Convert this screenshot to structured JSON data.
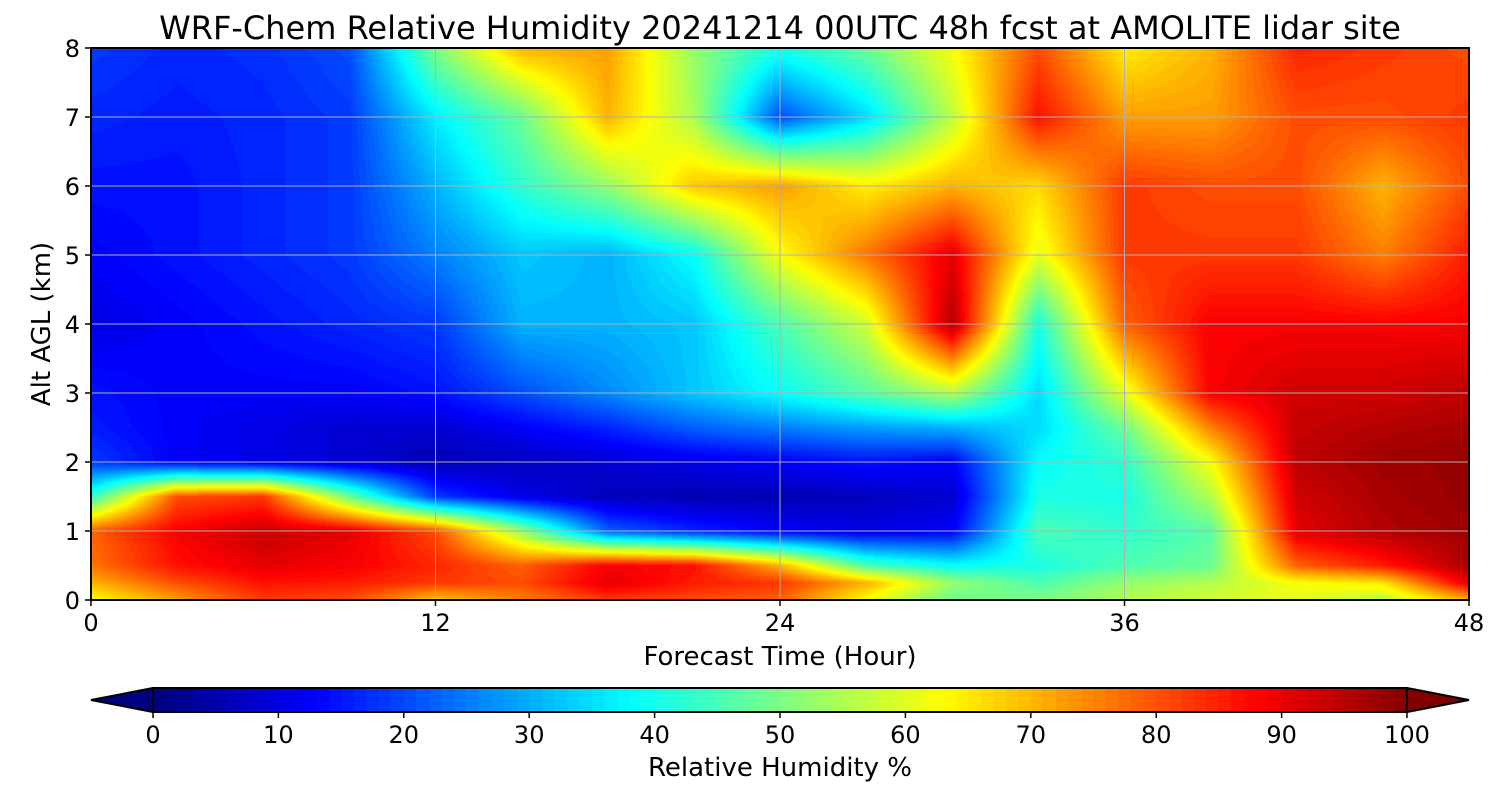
{
  "chart_data": {
    "type": "heatmap",
    "title": "WRF-Chem Relative Humidity 20241214 00UTC 48h fcst at AMOLITE lidar site",
    "xlabel": "Forecast Time (Hour)",
    "ylabel": "Alt AGL (km)",
    "xlim": [
      0,
      48
    ],
    "ylim": [
      0,
      8
    ],
    "xticks": [
      0,
      12,
      24,
      36,
      48
    ],
    "yticks": [
      0,
      1,
      2,
      3,
      4,
      5,
      6,
      7,
      8
    ],
    "grid": true,
    "colormap": "jet",
    "colorbar": {
      "label": "Relative Humidity %",
      "ticks": [
        0,
        10,
        20,
        30,
        40,
        50,
        60,
        70,
        80,
        90,
        100
      ],
      "range": [
        0,
        100
      ],
      "extend": "both",
      "orientation": "horizontal"
    },
    "x": [
      0,
      3,
      6,
      9,
      12,
      15,
      18,
      21,
      24,
      27,
      30,
      33,
      36,
      39,
      42,
      45,
      48
    ],
    "y": [
      0,
      0.25,
      0.5,
      1,
      1.5,
      2,
      2.5,
      3,
      4,
      5,
      6,
      7,
      8
    ],
    "z": [
      [
        62,
        72,
        82,
        80,
        68,
        75,
        82,
        80,
        78,
        62,
        48,
        50,
        55,
        58,
        60,
        55,
        70
      ],
      [
        70,
        80,
        86,
        85,
        82,
        80,
        90,
        85,
        82,
        70,
        52,
        45,
        52,
        55,
        62,
        65,
        90
      ],
      [
        76,
        86,
        90,
        88,
        84,
        78,
        88,
        86,
        70,
        45,
        38,
        40,
        45,
        48,
        78,
        85,
        96
      ],
      [
        78,
        88,
        93,
        90,
        80,
        52,
        22,
        16,
        12,
        10,
        12,
        45,
        42,
        46,
        90,
        95,
        97
      ],
      [
        42,
        80,
        82,
        48,
        18,
        10,
        6,
        5,
        5,
        6,
        8,
        40,
        40,
        55,
        92,
        96,
        98
      ],
      [
        18,
        12,
        10,
        8,
        5,
        6,
        8,
        10,
        12,
        14,
        12,
        38,
        42,
        62,
        94,
        97,
        98
      ],
      [
        15,
        12,
        10,
        8,
        8,
        12,
        16,
        22,
        25,
        28,
        30,
        34,
        48,
        75,
        93,
        95,
        96
      ],
      [
        14,
        12,
        12,
        12,
        14,
        20,
        26,
        32,
        38,
        46,
        55,
        34,
        60,
        88,
        92,
        92,
        94
      ],
      [
        10,
        12,
        14,
        16,
        18,
        30,
        30,
        32,
        45,
        58,
        95,
        40,
        78,
        88,
        88,
        88,
        88
      ],
      [
        12,
        14,
        16,
        18,
        25,
        32,
        30,
        38,
        62,
        76,
        90,
        60,
        82,
        82,
        82,
        75,
        85
      ],
      [
        14,
        14,
        16,
        18,
        30,
        42,
        52,
        68,
        72,
        64,
        70,
        66,
        82,
        80,
        80,
        70,
        80
      ],
      [
        16,
        15,
        16,
        18,
        36,
        48,
        70,
        54,
        20,
        34,
        56,
        86,
        72,
        72,
        80,
        80,
        82
      ],
      [
        18,
        16,
        17,
        20,
        50,
        70,
        72,
        52,
        40,
        48,
        62,
        80,
        64,
        70,
        84,
        82,
        80
      ]
    ]
  }
}
